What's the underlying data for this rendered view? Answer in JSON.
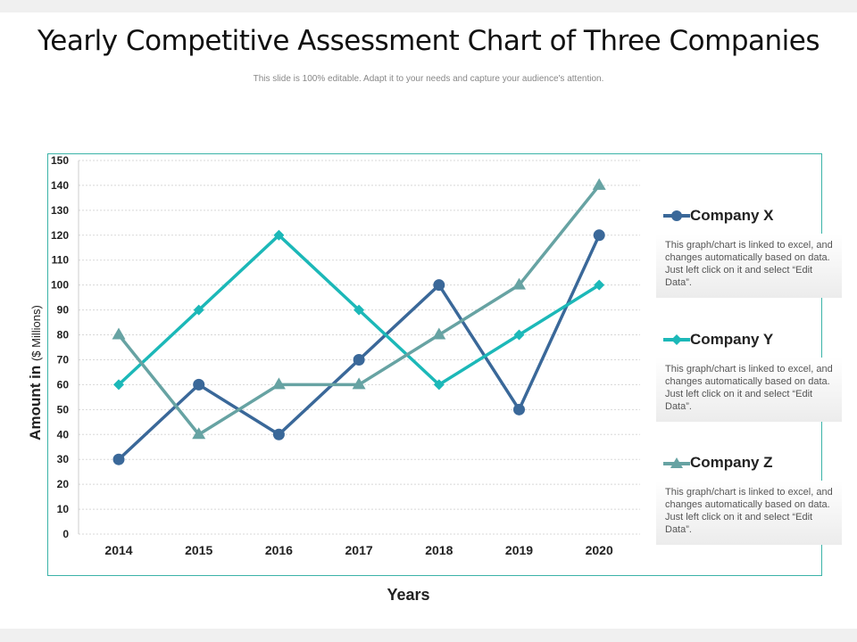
{
  "title": "Yearly Competitive Assessment Chart of Three Companies",
  "subtitle": "This slide is 100% editable. Adapt it to your needs and capture your audience's attention.",
  "chart_data": {
    "type": "line",
    "categories": [
      "2014",
      "2015",
      "2016",
      "2017",
      "2018",
      "2019",
      "2020"
    ],
    "xlabel": "Years",
    "ylabel_main": "Amount in",
    "ylabel_unit": "($ Millions)",
    "ylim": [
      0,
      150
    ],
    "yticks": [
      0,
      10,
      20,
      30,
      40,
      50,
      60,
      70,
      80,
      90,
      100,
      110,
      120,
      130,
      140,
      150
    ],
    "grid": true,
    "legend_placement": "right",
    "series": [
      {
        "name": "Company X",
        "values": [
          30,
          60,
          40,
          70,
          100,
          50,
          120
        ],
        "color": "#3a6899",
        "marker": "circle"
      },
      {
        "name": "Company Y",
        "values": [
          60,
          90,
          120,
          90,
          60,
          80,
          100
        ],
        "color": "#1cb8b8",
        "marker": "diamond"
      },
      {
        "name": "Company Z",
        "values": [
          80,
          40,
          60,
          60,
          80,
          100,
          140
        ],
        "color": "#67a3a3",
        "marker": "triangle"
      }
    ]
  },
  "legend_desc": "This graph/chart is linked to excel, and changes automatically based on data. Just left click on it and select “Edit Data”."
}
